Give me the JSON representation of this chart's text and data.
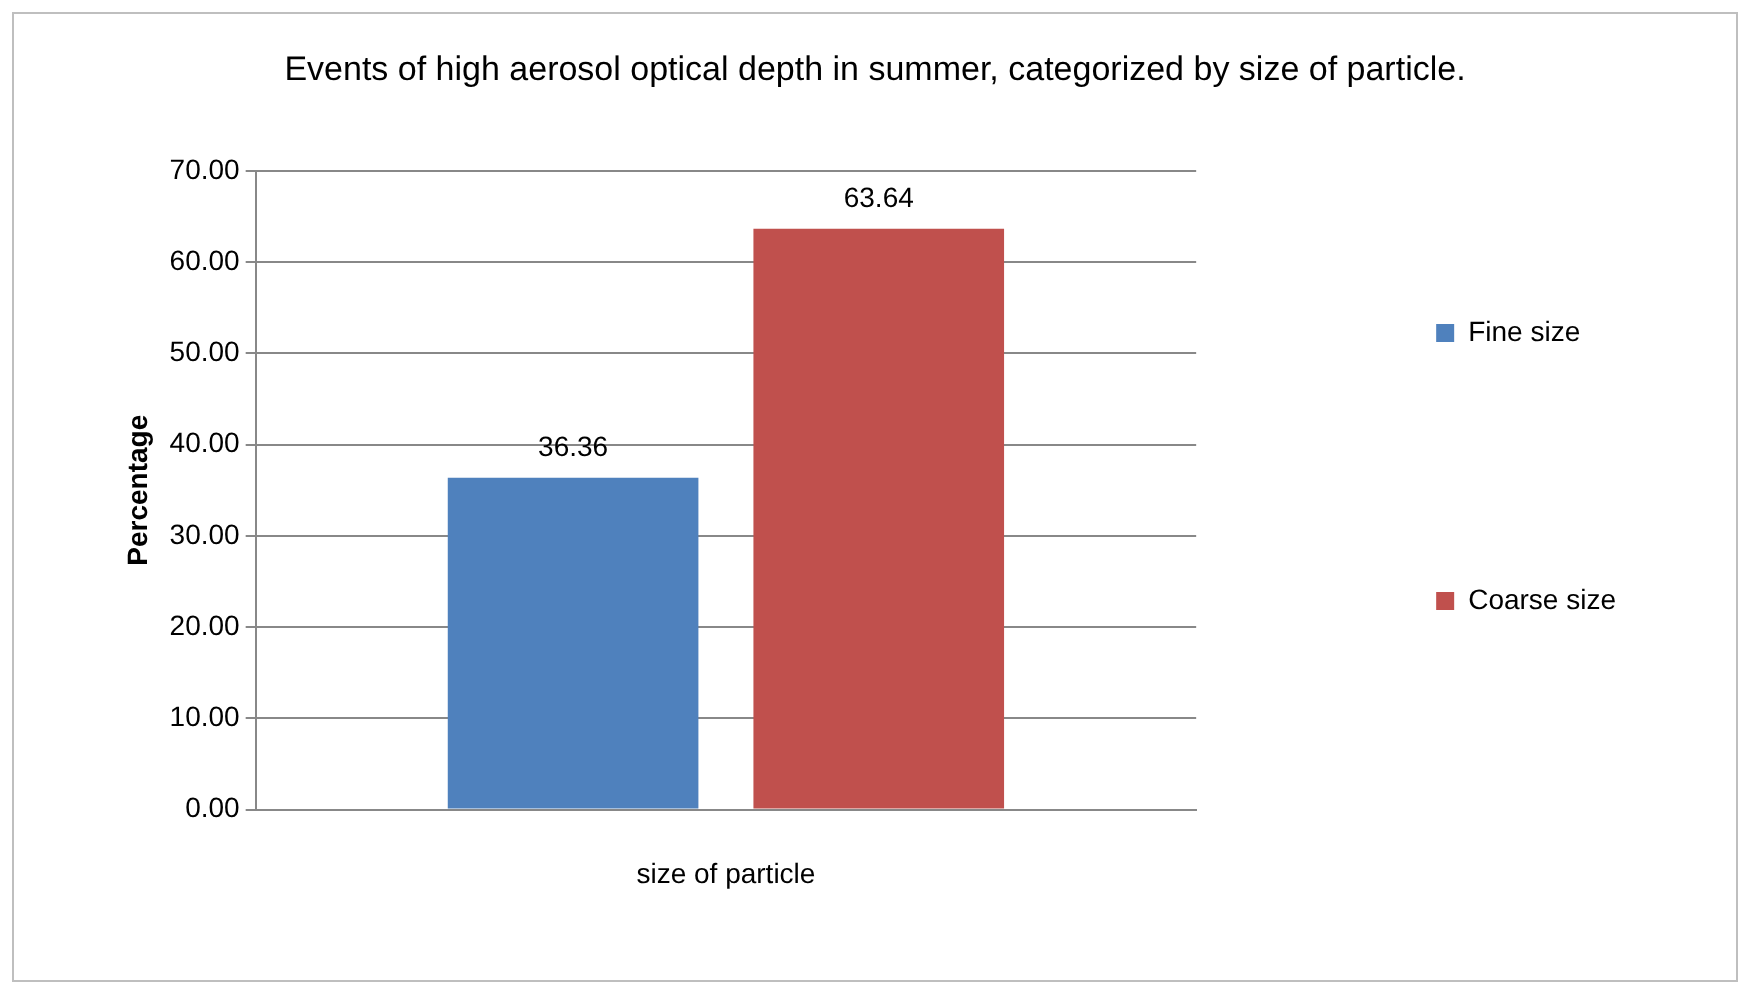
{
  "chart_data": {
    "type": "bar",
    "title": "Events of high aerosol optical depth in summer, categorized by size of particle.",
    "xlabel": "size of particle",
    "ylabel": "Percentage",
    "categories": [
      null
    ],
    "series": [
      {
        "name": "Fine size",
        "color": "#4f81bd",
        "values": [
          36.36
        ]
      },
      {
        "name": "Coarse size",
        "color": "#c0504d",
        "values": [
          63.64
        ]
      }
    ],
    "ylim": [
      0,
      70
    ],
    "yticks": [
      {
        "value": 0,
        "label": "0.00"
      },
      {
        "value": 10,
        "label": "10.00"
      },
      {
        "value": 20,
        "label": "20.00"
      },
      {
        "value": 30,
        "label": "30.00"
      },
      {
        "value": 40,
        "label": "40.00"
      },
      {
        "value": 50,
        "label": "50.00"
      },
      {
        "value": 60,
        "label": "60.00"
      },
      {
        "value": 70,
        "label": "70.00"
      }
    ],
    "grid": "y",
    "legend": "right",
    "data_labels": true
  }
}
